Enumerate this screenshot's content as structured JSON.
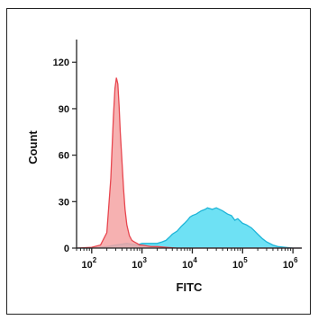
{
  "chart_data": {
    "type": "area",
    "title": "",
    "xlabel": "FITC",
    "ylabel": "Count",
    "x_scale": "log10",
    "xlim": [
      50,
      1500000
    ],
    "ylim": [
      0,
      130
    ],
    "x_ticks": [
      {
        "value": 100,
        "base": "10",
        "exp": "2"
      },
      {
        "value": 1000,
        "base": "10",
        "exp": "3"
      },
      {
        "value": 10000,
        "base": "10",
        "exp": "4"
      },
      {
        "value": 100000,
        "base": "10",
        "exp": "5"
      },
      {
        "value": 1000000,
        "base": "10",
        "exp": "6"
      }
    ],
    "y_ticks": [
      "0",
      "30",
      "60",
      "90",
      "120"
    ],
    "grid": false,
    "legend": "none",
    "series": [
      {
        "fill_color": "#f4a3a3",
        "line_color": "#e8464f",
        "x": [
          50,
          100,
          150,
          200,
          240,
          270,
          290,
          310,
          330,
          350,
          370,
          400,
          430,
          460,
          500,
          560,
          630,
          700,
          800,
          900,
          1000,
          1200,
          1500,
          2000,
          3000,
          5000,
          10000,
          30000,
          100000,
          300000,
          1000000,
          1500000
        ],
        "y": [
          0,
          0.5,
          2,
          10,
          45,
          85,
          103,
          110,
          106,
          92,
          75,
          56,
          38,
          25,
          15,
          8,
          5,
          4,
          3,
          2,
          2,
          1.5,
          1,
          1,
          0.5,
          0,
          0,
          0,
          0,
          0,
          0,
          0
        ]
      },
      {
        "fill_color": "#55dcf2",
        "line_color": "#1fb5d8",
        "x": [
          50,
          100,
          200,
          300,
          500,
          800,
          1000,
          1500,
          2000,
          2500,
          3000,
          3500,
          4000,
          5000,
          6000,
          7000,
          8000,
          9000,
          10000,
          12000,
          15000,
          18000,
          20000,
          25000,
          30000,
          40000,
          50000,
          60000,
          70000,
          80000,
          100000,
          120000,
          150000,
          200000,
          250000,
          300000,
          400000,
          500000,
          700000,
          1000000,
          1500000
        ],
        "y": [
          0,
          0,
          1,
          2,
          3,
          2,
          3,
          3,
          3,
          4,
          5,
          7,
          9,
          11,
          14,
          16,
          18,
          20,
          21,
          22,
          24,
          25,
          26,
          25,
          26,
          24,
          22,
          21,
          18,
          19,
          16,
          15,
          13,
          9,
          6,
          4,
          2,
          1,
          0.5,
          0,
          0
        ]
      }
    ]
  }
}
